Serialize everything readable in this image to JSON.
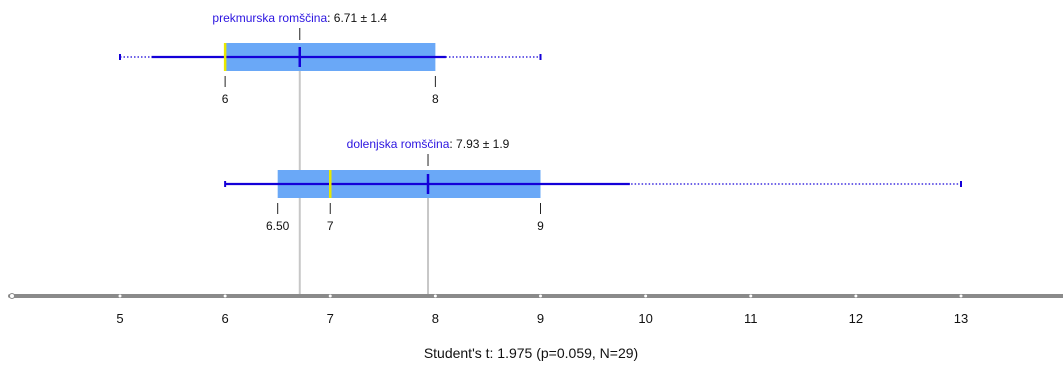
{
  "chart_data": {
    "type": "box",
    "xlim": [
      4,
      14
    ],
    "x_ticks": [
      5,
      6,
      7,
      8,
      9,
      10,
      11,
      12,
      13
    ],
    "grid": false,
    "series": [
      {
        "name": "prekmurska romščina",
        "mean": 6.71,
        "sd": 1.4,
        "mean_label": "6.71 ± 1.4",
        "q1": 6,
        "median": 6,
        "q3": 8,
        "whisker_low": 5.3,
        "whisker_high": 8.1,
        "min": 5,
        "max": 9,
        "quartile_labels": [
          "6",
          "8"
        ]
      },
      {
        "name": "dolenjska romščina",
        "mean": 7.93,
        "sd": 1.9,
        "mean_label": "7.93 ± 1.9",
        "q1": 6.5,
        "median": 7,
        "q3": 9,
        "whisker_low": 6,
        "whisker_high": 9.85,
        "min": 6,
        "max": 13,
        "quartile_labels": [
          "6.50",
          "7",
          "9"
        ]
      }
    ],
    "statistic_text": "Student's t: 1.975 (p=0.059, N=29)"
  },
  "colors": {
    "box_fill": "#6aa8f7",
    "line": "#1400d8",
    "median": "#e8e800",
    "mean_guide": "#c7c7c7",
    "axis": "#8a8a8a",
    "label_name": "#2b14e0",
    "text": "#111111"
  }
}
